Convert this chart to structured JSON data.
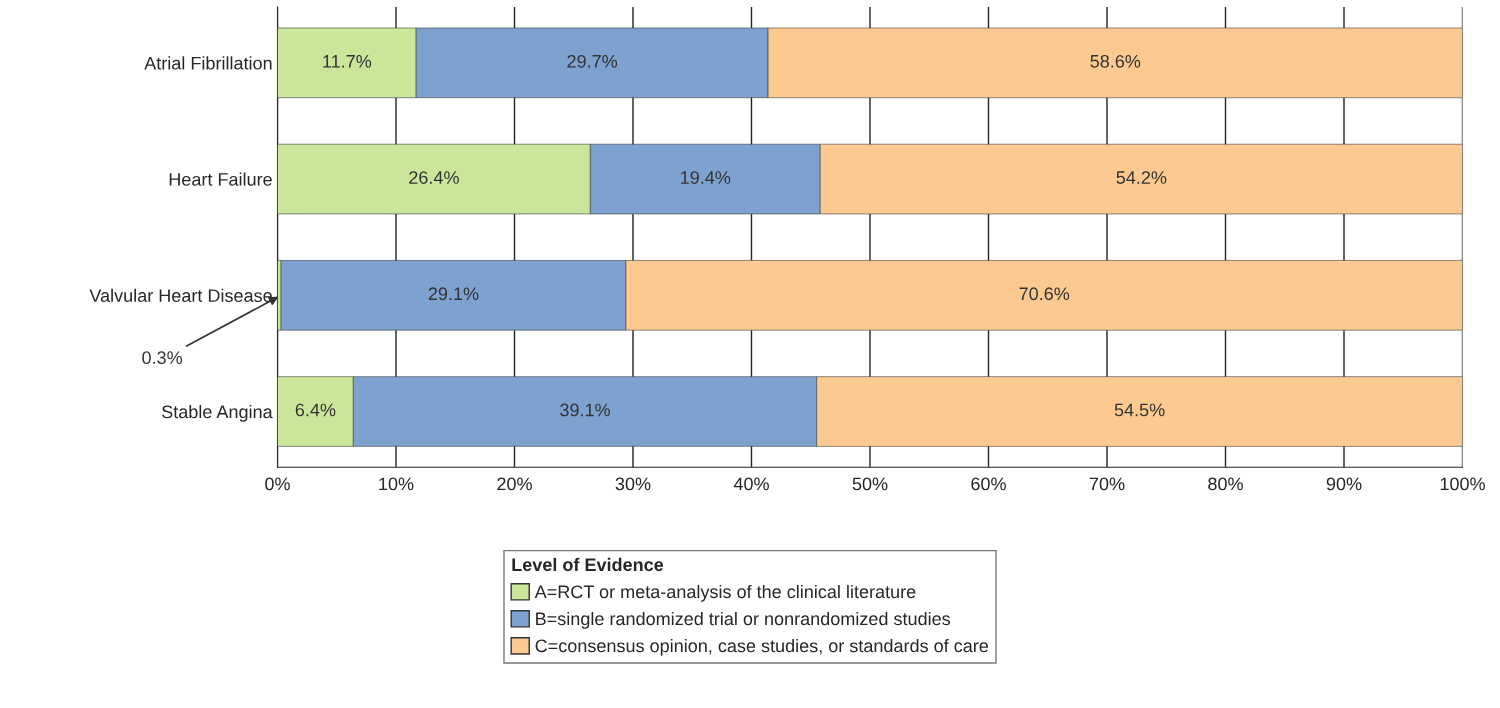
{
  "chart_data": {
    "type": "bar",
    "orientation": "horizontal",
    "stacked": true,
    "categories": [
      "Atrial Fibrillation",
      "Heart Failure",
      "Valvular Heart Disease",
      "Stable Angina"
    ],
    "series": [
      {
        "name": "A=RCT or meta-analysis of the clinical literature",
        "color": "#c9e69b",
        "values": [
          11.7,
          26.4,
          0.3,
          6.4
        ],
        "value_labels": [
          "11.7%",
          "26.4%",
          null,
          "6.4%"
        ]
      },
      {
        "name": "B=single randomized trial or nonrandomized studies",
        "color": "#7ea2d0",
        "values": [
          29.7,
          19.4,
          29.1,
          39.1
        ],
        "value_labels": [
          "29.7%",
          "19.4%",
          "29.1%",
          "39.1%"
        ]
      },
      {
        "name": "C=consensus opinion, case studies, or standards of care",
        "color": "#fcca90",
        "values": [
          58.6,
          54.2,
          70.6,
          54.5
        ],
        "value_labels": [
          "58.6%",
          "54.2%",
          "70.6%",
          "54.5%"
        ]
      }
    ],
    "xlim": [
      0,
      100
    ],
    "xticks": [
      {
        "value": 0,
        "label": "0%"
      },
      {
        "value": 10,
        "label": "10%"
      },
      {
        "value": 20,
        "label": "20%"
      },
      {
        "value": 30,
        "label": "30%"
      },
      {
        "value": 40,
        "label": "40%"
      },
      {
        "value": 50,
        "label": "50%"
      },
      {
        "value": 60,
        "label": "60%"
      },
      {
        "value": 70,
        "label": "70%"
      },
      {
        "value": 80,
        "label": "80%"
      },
      {
        "value": 90,
        "label": "90%"
      },
      {
        "value": 100,
        "label": "100%"
      }
    ],
    "annotations": [
      {
        "text": "0.3%",
        "x": 0.3,
        "y": "Valvular Heart Disease"
      }
    ],
    "legend_title": "Level of Evidence",
    "legend": "bottom",
    "grid": "x"
  }
}
